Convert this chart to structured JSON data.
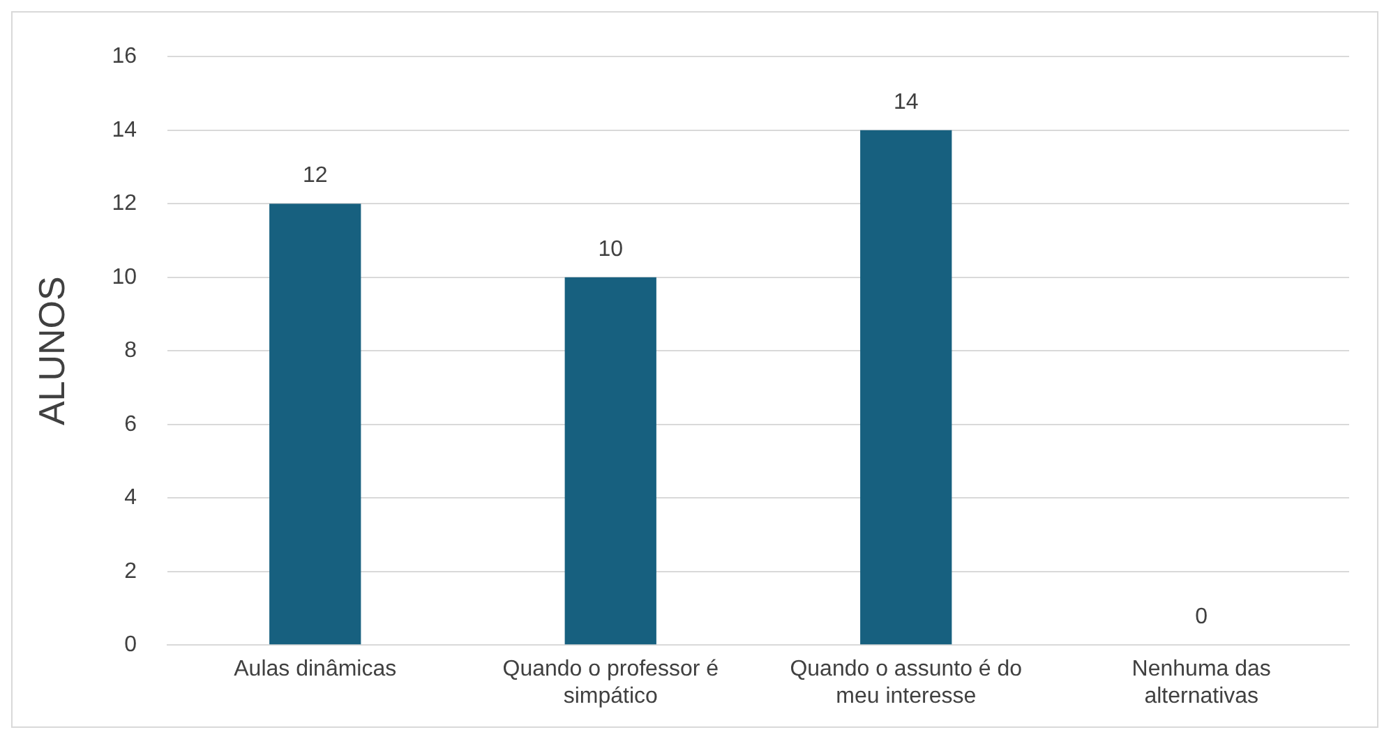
{
  "chart_data": {
    "type": "bar",
    "ylabel": "ALUNOS",
    "categories": [
      "Aulas dinâmicas",
      "Quando o professor é simpático",
      "Quando o assunto é do meu interesse",
      "Nenhuma das alternativas"
    ],
    "values": [
      12,
      10,
      14,
      0
    ],
    "color": "#17607f",
    "ylim": [
      0,
      16
    ],
    "yticks": [
      0,
      2,
      4,
      6,
      8,
      10,
      12,
      14,
      16
    ],
    "grid": "y",
    "data_labels": true,
    "legend": false
  }
}
